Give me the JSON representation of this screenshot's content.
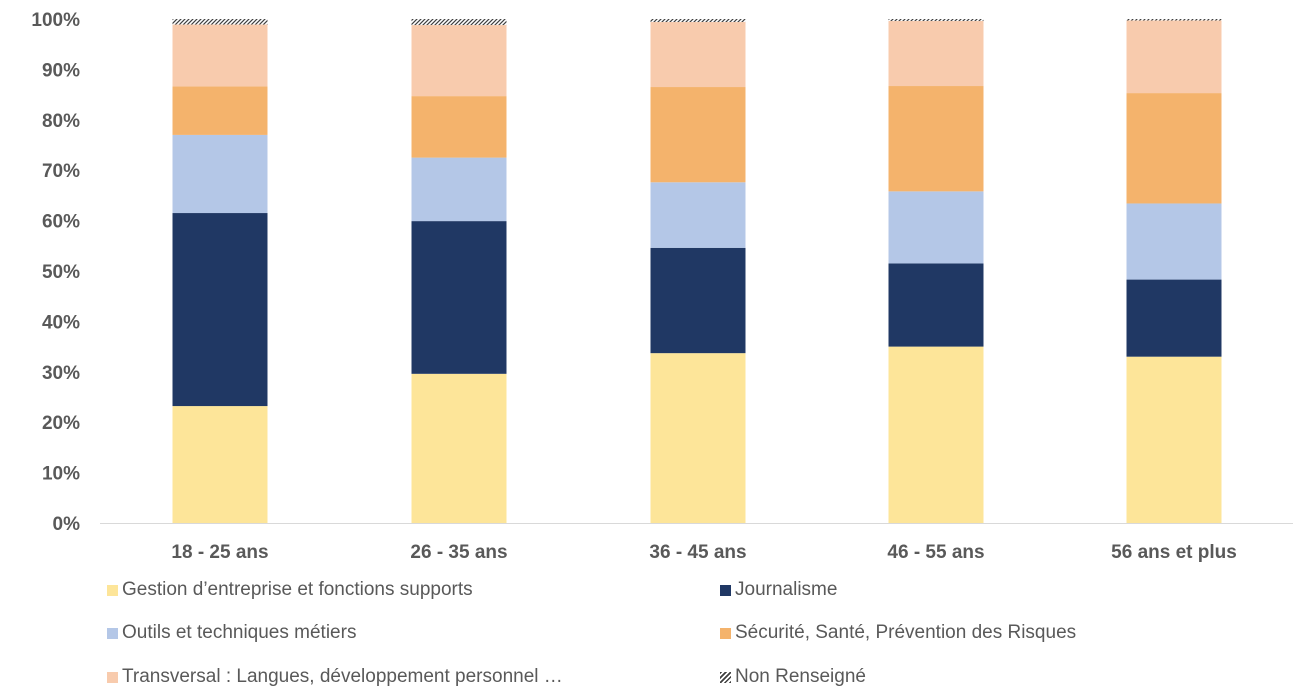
{
  "chart_data": {
    "type": "bar",
    "stacked": true,
    "categories": [
      "18 - 25 ans",
      "26 - 35 ans",
      "36 - 45 ans",
      "46 - 55 ans",
      "56 ans et plus"
    ],
    "ylim": [
      0,
      100
    ],
    "yticks": [
      "0%",
      "10%",
      "20%",
      "30%",
      "40%",
      "50%",
      "60%",
      "70%",
      "80%",
      "90%",
      "100%"
    ],
    "grid": false,
    "legend_position": "bottom",
    "series": [
      {
        "name": "Gestion d’entreprise et fonctions supports",
        "color": "#FDE599",
        "values": [
          23.2,
          29.6,
          33.7,
          35.0,
          33.0
        ]
      },
      {
        "name": "Journalisme",
        "color": "#203864",
        "values": [
          38.3,
          30.3,
          20.9,
          16.5,
          15.3
        ]
      },
      {
        "name": "Outils et techniques métiers",
        "color": "#B4C7E7",
        "values": [
          15.5,
          12.6,
          13.0,
          14.3,
          15.1
        ]
      },
      {
        "name": "Sécurité, Santé, Prévention des Risques",
        "color": "#F4B36C",
        "values": [
          9.6,
          12.2,
          18.9,
          20.9,
          21.9
        ]
      },
      {
        "name": "Transversal : Langues, développement personnel …",
        "color": "#F8CBAD",
        "values": [
          12.3,
          14.1,
          12.9,
          12.9,
          14.4
        ]
      },
      {
        "name": "Non Renseigné",
        "color": "pattern-hatch",
        "values": [
          1.1,
          1.2,
          0.6,
          0.4,
          0.3
        ]
      }
    ]
  }
}
